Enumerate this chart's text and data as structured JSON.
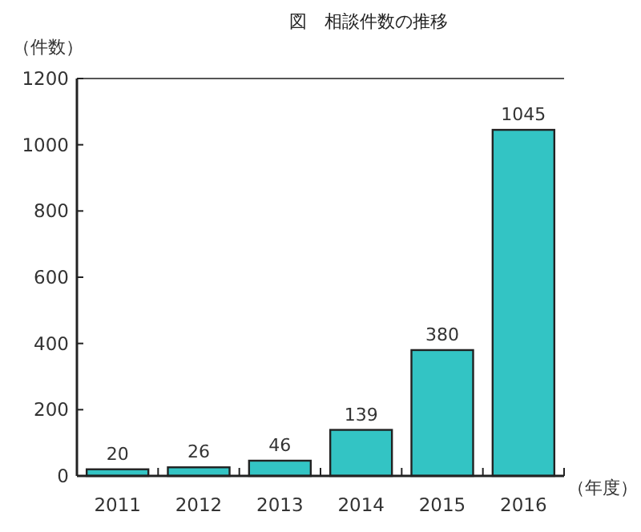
{
  "chart_data": {
    "type": "bar",
    "title": "図　相談件数の推移",
    "ylabel": "（件数）",
    "xlabel": "（年度）",
    "categories": [
      "2011",
      "2012",
      "2013",
      "2014",
      "2015",
      "2016"
    ],
    "values": [
      20,
      26,
      46,
      139,
      380,
      1045
    ],
    "color": "#33c4c4",
    "ylim": [
      0,
      1200
    ],
    "yticks": [
      0,
      200,
      400,
      600,
      800,
      1000,
      1200
    ],
    "data_labels": true,
    "grid": false
  }
}
